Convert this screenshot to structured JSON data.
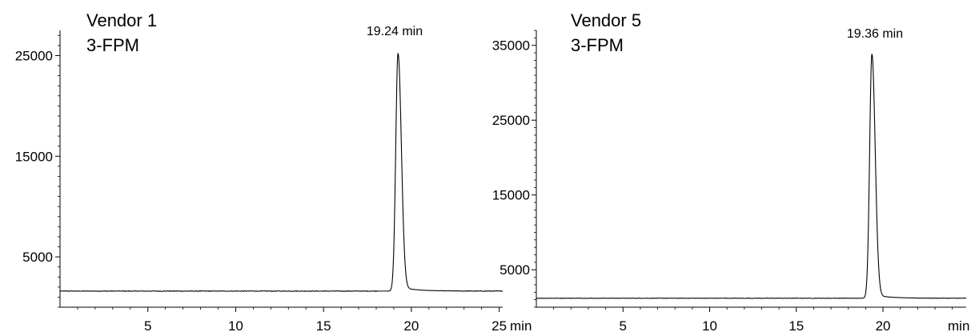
{
  "chart_data": [
    {
      "type": "line",
      "title": "Vendor 1",
      "subtitle": "3-FPM",
      "peak_label": "19.24 min",
      "xunit": "min",
      "xlim": [
        0,
        25.2
      ],
      "ylim": [
        0,
        27500
      ],
      "xticks": [
        5,
        10,
        15,
        20,
        25
      ],
      "xtick_labels": [
        "5",
        "10",
        "15",
        "20",
        "25"
      ],
      "yticks": [
        5000,
        15000,
        25000
      ],
      "ytick_labels": [
        "5000",
        "15000",
        "25000"
      ],
      "baseline": 1600,
      "peak_x": 19.24,
      "peak_y": 25200,
      "peak_sigma_left": 0.13,
      "peak_sigma_right": 0.19,
      "tail_amplitude": 450,
      "tail_decay": 0.9,
      "series": [
        {
          "values": []
        }
      ]
    },
    {
      "type": "line",
      "title": "Vendor 5",
      "subtitle": "3-FPM",
      "peak_label": "19.36 min",
      "xunit": "min",
      "xlim": [
        0,
        24.8
      ],
      "ylim": [
        0,
        37000
      ],
      "xticks": [
        5,
        10,
        15,
        20
      ],
      "xtick_labels": [
        "5",
        "10",
        "15",
        "20"
      ],
      "yticks": [
        5000,
        15000,
        25000,
        35000
      ],
      "ytick_labels": [
        "5000",
        "15000",
        "25000",
        "35000"
      ],
      "baseline": 1200,
      "peak_x": 19.36,
      "peak_y": 33800,
      "peak_sigma_left": 0.13,
      "peak_sigma_right": 0.19,
      "tail_amplitude": 500,
      "tail_decay": 0.9,
      "series": [
        {
          "values": []
        }
      ]
    }
  ]
}
